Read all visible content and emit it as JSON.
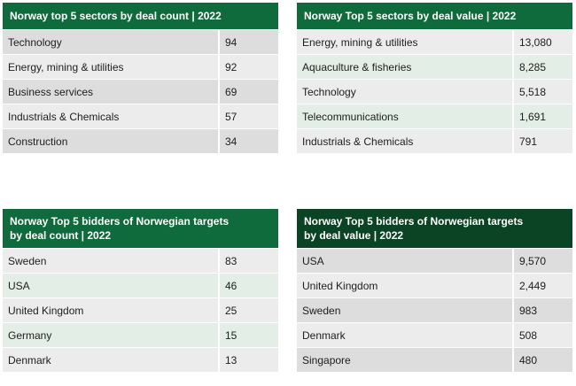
{
  "colors": {
    "header_green": "#0f6b3c",
    "header_dark_green": "#0b4424",
    "row_grey_dark": "#dddddd",
    "row_grey_light": "#ececec",
    "row_mint": "#e3efe6"
  },
  "tables": [
    {
      "title_lines": [
        "Norway top 5 sectors by deal count  | 2022"
      ],
      "rows": [
        {
          "label": "Technology",
          "value": "94"
        },
        {
          "label": "Energy, mining & utilities",
          "value": "92"
        },
        {
          "label": "Business services",
          "value": "69"
        },
        {
          "label": "Industrials & Chemicals",
          "value": "57"
        },
        {
          "label": "Construction",
          "value": "34"
        }
      ]
    },
    {
      "title_lines": [
        "Norway Top 5 sectors by deal value | 2022"
      ],
      "rows": [
        {
          "label": "Energy, mining & utilities",
          "value": "13,080"
        },
        {
          "label": "Aquaculture & fisheries",
          "value": "8,285"
        },
        {
          "label": "Technology",
          "value": "5,518"
        },
        {
          "label": "Telecommunications",
          "value": "1,691"
        },
        {
          "label": "Industrials & Chemicals",
          "value": "791"
        }
      ]
    },
    {
      "title_lines": [
        "Norway Top 5 bidders of Norwegian targets",
        "by deal count | 2022"
      ],
      "rows": [
        {
          "label": "Sweden",
          "value": "83"
        },
        {
          "label": "USA",
          "value": "46"
        },
        {
          "label": "United Kingdom",
          "value": "25"
        },
        {
          "label": "Germany",
          "value": "15"
        },
        {
          "label": "Denmark",
          "value": "13"
        }
      ]
    },
    {
      "title_lines": [
        "Norway Top 5 bidders of Norwegian targets",
        "by deal value | 2022"
      ],
      "rows": [
        {
          "label": "USA",
          "value": "9,570"
        },
        {
          "label": "United Kingdom",
          "value": "2,449"
        },
        {
          "label": "Sweden",
          "value": "983"
        },
        {
          "label": "Denmark",
          "value": "508"
        },
        {
          "label": "Singapore",
          "value": "480"
        }
      ]
    }
  ]
}
